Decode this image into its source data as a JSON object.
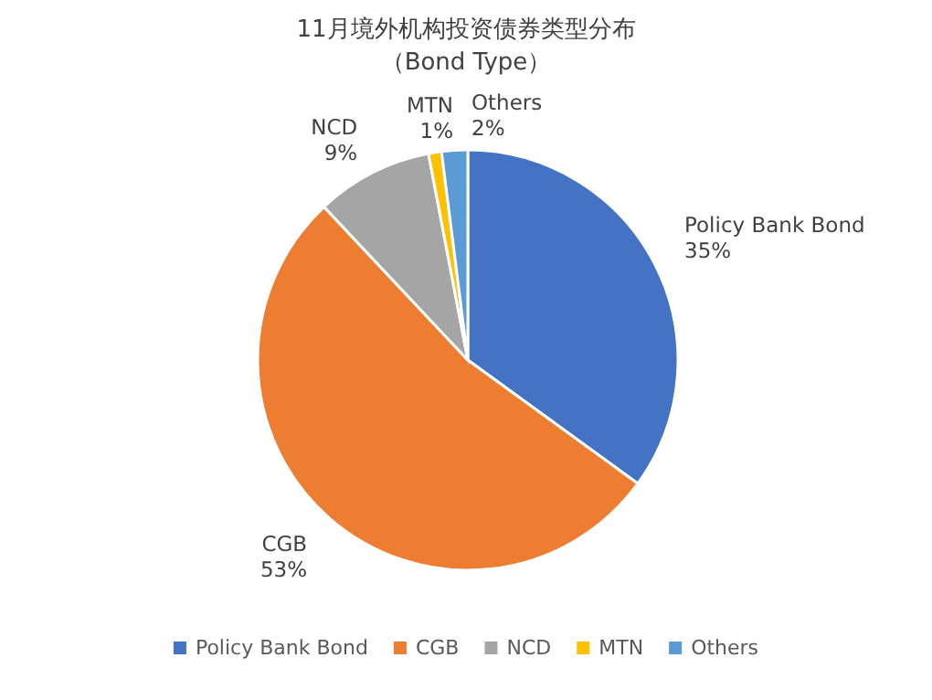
{
  "chart_data": {
    "type": "pie",
    "title": "11月境外机构投资债券类型分布",
    "subtitle": "（Bond Type）",
    "categories": [
      "Policy Bank Bond",
      "CGB",
      "NCD",
      "MTN",
      "Others"
    ],
    "values": [
      35,
      53,
      9,
      1,
      2
    ],
    "value_labels": [
      "35%",
      "53%",
      "9%",
      "1%",
      "2%"
    ],
    "colors": [
      "#4472c4",
      "#ed7d31",
      "#a5a5a5",
      "#ffc000",
      "#5b9bd5"
    ],
    "legend": "bottom"
  }
}
